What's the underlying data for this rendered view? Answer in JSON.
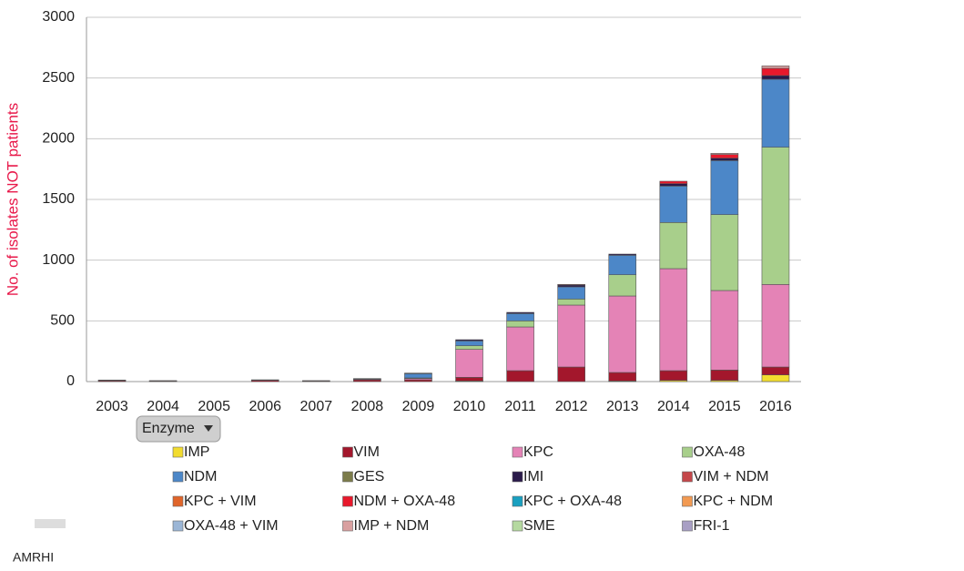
{
  "chart_data": {
    "type": "stacked_bar",
    "ylabel": "No. of isolates NOT patients",
    "categories": [
      "2003",
      "2004",
      "2005",
      "2006",
      "2007",
      "2008",
      "2009",
      "2010",
      "2011",
      "2012",
      "2013",
      "2014",
      "2015",
      "2016"
    ],
    "ylim": [
      0,
      3000
    ],
    "yticks": [
      0,
      500,
      1000,
      1500,
      2000,
      2500,
      3000
    ],
    "grid": true,
    "filter_button": "Enzyme",
    "footer": "AMRHI",
    "series": [
      {
        "name": "IMP",
        "color": "#f2dc2f",
        "values": [
          0,
          0,
          0,
          0,
          0,
          0,
          0,
          5,
          0,
          0,
          5,
          10,
          10,
          55
        ]
      },
      {
        "name": "VIM",
        "color": "#a3172c",
        "values": [
          8,
          5,
          0,
          10,
          5,
          15,
          15,
          30,
          90,
          120,
          70,
          80,
          85,
          65
        ]
      },
      {
        "name": "KPC",
        "color": "#e483b6",
        "values": [
          0,
          0,
          0,
          0,
          0,
          0,
          10,
          230,
          360,
          510,
          630,
          840,
          655,
          680
        ]
      },
      {
        "name": "OXA-48",
        "color": "#a8cf8b",
        "values": [
          0,
          0,
          0,
          0,
          0,
          0,
          5,
          30,
          50,
          50,
          175,
          380,
          625,
          1130
        ]
      },
      {
        "name": "NDM",
        "color": "#4c87c8",
        "values": [
          0,
          0,
          0,
          0,
          0,
          5,
          35,
          40,
          60,
          100,
          160,
          300,
          445,
          560
        ]
      },
      {
        "name": "GES",
        "color": "#7b7b4a",
        "values": [
          0,
          0,
          0,
          0,
          0,
          0,
          0,
          0,
          0,
          0,
          0,
          0,
          0,
          0
        ]
      },
      {
        "name": "IMI",
        "color": "#2a1a4a",
        "values": [
          5,
          3,
          0,
          5,
          3,
          5,
          5,
          10,
          10,
          15,
          10,
          20,
          20,
          30
        ]
      },
      {
        "name": "VIM + NDM",
        "color": "#c4474a",
        "values": [
          0,
          0,
          0,
          0,
          0,
          0,
          0,
          0,
          0,
          0,
          0,
          0,
          0,
          0
        ]
      },
      {
        "name": "KPC + VIM",
        "color": "#e0652a",
        "values": [
          0,
          0,
          0,
          0,
          0,
          0,
          0,
          0,
          0,
          0,
          0,
          0,
          0,
          0
        ]
      },
      {
        "name": "NDM + OXA-48",
        "color": "#e8192c",
        "values": [
          0,
          0,
          0,
          0,
          0,
          0,
          0,
          0,
          0,
          5,
          0,
          20,
          30,
          60
        ]
      },
      {
        "name": "KPC + OXA-48",
        "color": "#1aa0c0",
        "values": [
          0,
          0,
          0,
          0,
          0,
          0,
          0,
          0,
          0,
          0,
          0,
          0,
          0,
          0
        ]
      },
      {
        "name": "KPC + NDM",
        "color": "#f29a52",
        "values": [
          0,
          0,
          0,
          0,
          0,
          0,
          0,
          0,
          0,
          0,
          0,
          0,
          0,
          0
        ]
      },
      {
        "name": "OXA-48 + VIM",
        "color": "#9bb6d6",
        "values": [
          0,
          0,
          0,
          0,
          0,
          0,
          0,
          0,
          0,
          0,
          0,
          0,
          0,
          0
        ]
      },
      {
        "name": "IMP + NDM",
        "color": "#d9a0a0",
        "values": [
          0,
          0,
          0,
          0,
          0,
          0,
          0,
          0,
          0,
          0,
          0,
          0,
          10,
          20
        ]
      },
      {
        "name": "SME",
        "color": "#b5d9a0",
        "values": [
          0,
          0,
          0,
          0,
          0,
          0,
          0,
          0,
          0,
          0,
          0,
          0,
          0,
          0
        ]
      },
      {
        "name": "FRI-1",
        "color": "#a89fc4",
        "values": [
          0,
          0,
          0,
          0,
          0,
          0,
          0,
          0,
          0,
          0,
          0,
          0,
          0,
          0
        ]
      }
    ]
  }
}
